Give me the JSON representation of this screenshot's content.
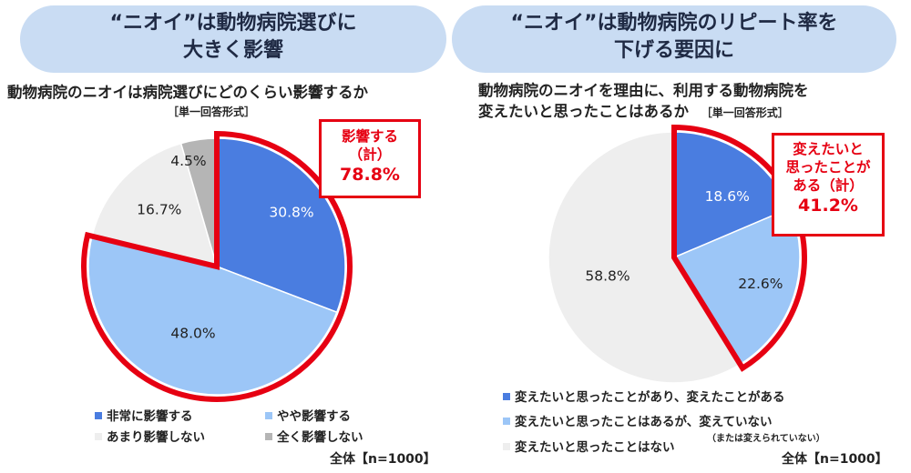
{
  "left": {
    "banner_lines": [
      "“ニオイ”は動物病院選びに",
      "大きく影響"
    ],
    "question": "動物病院のニオイは病院選びにどのくらい影響するか",
    "question_type": "［単一回答形式］",
    "callout_lines": [
      "影響する",
      "（計）",
      "78.8%"
    ],
    "legend": [
      "非常に影響する",
      "やや影響する",
      "あまり影響しない",
      "全く影響しない"
    ],
    "sample": "全体【n=1000】"
  },
  "right": {
    "banner_lines": [
      "“ニオイ”は動物病院のリピート率を",
      "下げる要因に"
    ],
    "question_lines": [
      "動物病院のニオイを理由に、利用する動物病院を",
      "変えたいと思ったことはあるか"
    ],
    "question_type": "［単一回答形式］",
    "callout_lines": [
      "変えたいと",
      "思ったことが",
      "ある（計）",
      "41.2%"
    ],
    "legend": [
      "変えたいと思ったことがあり、変えたことがある",
      "変えたいと思ったことはあるが、変えていない",
      "変えたいと思ったことはない"
    ],
    "legend_sub": "（または変えられていない）",
    "sample": "全体【n=1000】"
  },
  "colors": {
    "dark_blue": "#4a7de0",
    "light_blue": "#9cc6f7",
    "light_gray": "#eeeeee",
    "dark_gray": "#b5b5b5",
    "highlight": "#e60012"
  },
  "chart_data": [
    {
      "type": "pie",
      "title": "動物病院のニオイは病院選びにどのくらい影響するか",
      "categories": [
        "非常に影響する",
        "やや影響する",
        "あまり影響しない",
        "全く影響しない"
      ],
      "values": [
        30.8,
        48.0,
        16.7,
        4.5
      ],
      "labels": [
        "30.8%",
        "48.0%",
        "16.7%",
        "4.5%"
      ],
      "highlighted_total": 78.8,
      "highlighted_categories": [
        "非常に影響する",
        "やや影響する"
      ],
      "legend_position": "bottom"
    },
    {
      "type": "pie",
      "title": "動物病院のニオイを理由に、利用する動物病院を変えたいと思ったことはあるか",
      "categories": [
        "変えたいと思ったことがあり、変えたことがある",
        "変えたいと思ったことはあるが、変えていない",
        "変えたいと思ったことはない"
      ],
      "values": [
        18.6,
        22.6,
        58.8
      ],
      "labels": [
        "18.6%",
        "22.6%",
        "58.8%"
      ],
      "highlighted_total": 41.2,
      "highlighted_categories": [
        "変えたいと思ったことがあり、変えたことがある",
        "変えたいと思ったことはあるが、変えていない"
      ],
      "legend_position": "bottom"
    }
  ]
}
